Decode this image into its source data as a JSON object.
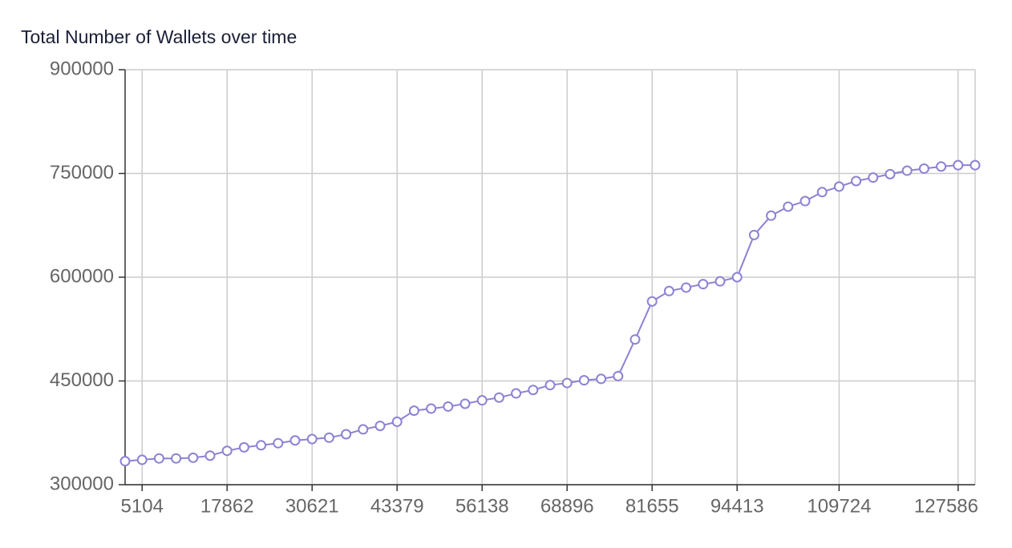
{
  "chart_data": {
    "type": "line",
    "title": "Total Number of Wallets over time",
    "categories": [
      null,
      "5104",
      null,
      null,
      null,
      null,
      "17862",
      null,
      null,
      null,
      null,
      "30621",
      null,
      null,
      null,
      null,
      "43379",
      null,
      null,
      null,
      null,
      "56138",
      null,
      null,
      null,
      null,
      "68896",
      null,
      null,
      null,
      null,
      "81655",
      null,
      null,
      null,
      null,
      "94413",
      null,
      null,
      null,
      null,
      null,
      "109724",
      null,
      null,
      null,
      null,
      null,
      null,
      "127586",
      null
    ],
    "series": [
      {
        "name": "Total Number of Wallets",
        "color": "#8c82d4",
        "values": [
          334000,
          336000,
          338000,
          338000,
          339000,
          342000,
          349000,
          354000,
          357000,
          360000,
          364000,
          366000,
          368000,
          373000,
          380000,
          385000,
          391000,
          407000,
          410000,
          413000,
          417000,
          422000,
          426000,
          432000,
          437000,
          444000,
          447000,
          451000,
          453000,
          457000,
          510000,
          565000,
          580000,
          585000,
          590000,
          594000,
          600000,
          661000,
          689000,
          702000,
          710000,
          723000,
          731000,
          739000,
          744000,
          749000,
          754000,
          757000,
          760000,
          762000,
          762000
        ]
      }
    ],
    "ylim": [
      300000,
      900000
    ],
    "yticks": [
      300000,
      450000,
      600000,
      750000,
      900000
    ],
    "grid": true
  }
}
